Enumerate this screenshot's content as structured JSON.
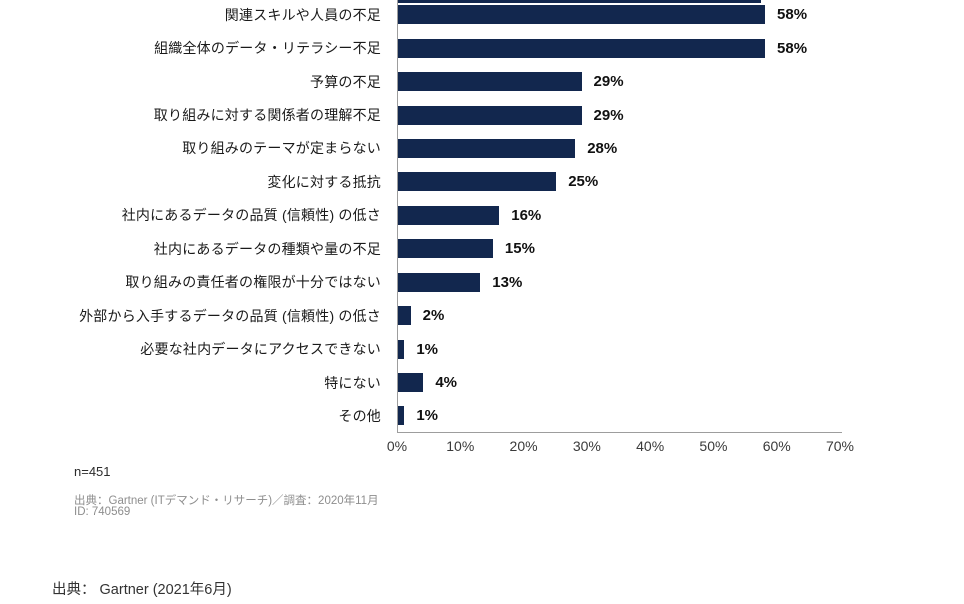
{
  "page": {
    "caption": "出典： Gartner (2021年6月)"
  },
  "chart_data": {
    "type": "bar",
    "orientation": "horizontal",
    "title": "",
    "xlabel": "",
    "ylabel": "",
    "xlim": [
      0,
      70
    ],
    "grid": false,
    "legend": "none",
    "bar_color": "#12274e",
    "axis_color": "#9d9d9d",
    "categories": [
      "関連スキルや人員の不足",
      "組織全体のデータ・リテラシー不足",
      "予算の不足",
      "取り組みに対する関係者の理解不足",
      "取り組みのテーマが定まらない",
      "変化に対する抵抗",
      "社内にあるデータの品質 (信頼性) の低さ",
      "社内にあるデータの種類や量の不足",
      "取り組みの責任者の権限が十分ではない",
      "外部から入手するデータの品質 (信頼性) の低さ",
      "必要な社内データにアクセスできない",
      "特にない",
      "その他"
    ],
    "values": [
      58,
      58,
      29,
      29,
      28,
      25,
      16,
      15,
      13,
      2,
      1,
      4,
      1
    ],
    "value_labels": [
      "58%",
      "58%",
      "29%",
      "29%",
      "28%",
      "25%",
      "16%",
      "15%",
      "13%",
      "2%",
      "1%",
      "4%",
      "1%"
    ],
    "x_ticks": [
      "0%",
      "10%",
      "20%",
      "30%",
      "40%",
      "50%",
      "60%",
      "70%"
    ],
    "notes": {
      "n": "n=451",
      "source": "出典：Gartner (ITデマンド・リサーチ)／調査：2020年11月",
      "id": "ID: 740569"
    }
  }
}
